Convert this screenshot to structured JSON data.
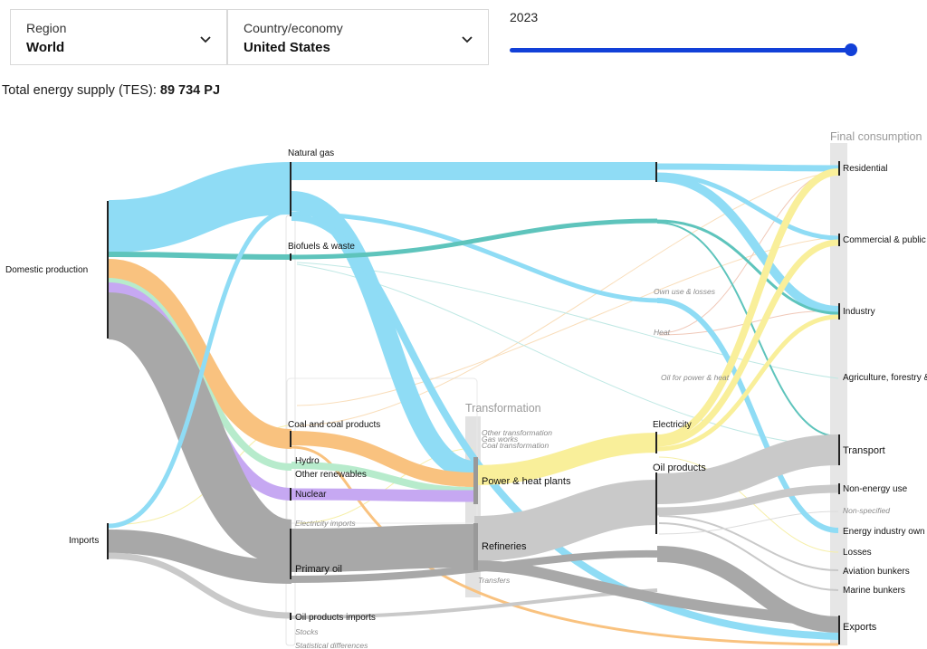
{
  "filters": {
    "region_label": "Region",
    "region_value": "World",
    "country_label": "Country/economy",
    "country_value": "United States",
    "year_label": "2023",
    "year_position_fraction": 1.0
  },
  "summary": {
    "tes_label": "Total energy supply (TES):",
    "tes_value": "89 734 PJ"
  },
  "icons": [
    "chevron-down-icon",
    "chevron-down-icon"
  ],
  "colors": {
    "accent": "#1240d8",
    "natural_gas": "#8fdcf5",
    "biofuels": "#5ec4bc",
    "coal": "#f9c27f",
    "nuclear": "#c6a8f2",
    "renewables": "#b7ebcc",
    "oil": "#a8a8a8",
    "electricity": "#f9ef9a",
    "oil_products": "#c9c9c9",
    "stage_bar": "#e6e6e6"
  },
  "stage_headers": {
    "transformation": "Transformation",
    "final_consumption": "Final consumption"
  },
  "nodes": {
    "domestic_production": "Domestic production",
    "imports": "Imports",
    "natural_gas": "Natural gas",
    "biofuels_waste": "Biofuels & waste",
    "coal": "Coal and coal products",
    "hydro": "Hydro",
    "other_renewables": "Other renewables",
    "nuclear": "Nuclear",
    "electricity_imports": "Electricity imports",
    "primary_oil": "Primary oil",
    "oil_products_imports": "Oil products imports",
    "stocks": "Stocks",
    "statistical_differences": "Statistical differences",
    "other_transformation": "Other transformation",
    "gas_works": "Gas works",
    "coal_transformation": "Coal transformation",
    "power_heat_plants": "Power & heat plants",
    "refineries": "Refineries",
    "transfers": "Transfers",
    "own_use_losses": "Own use & losses",
    "heat": "Heat",
    "oil_for_power_heat": "Oil for power & heat",
    "electricity": "Electricity",
    "oil_products": "Oil products",
    "residential": "Residential",
    "commercial_public": "Commercial & public",
    "industry": "Industry",
    "agriculture": "Agriculture, forestry &",
    "transport": "Transport",
    "non_energy_use": "Non-energy use",
    "non_specified": "Non-specified",
    "energy_industry_own": "Energy industry own",
    "losses": "Losses",
    "aviation_bunkers": "Aviation bunkers",
    "marine_bunkers": "Marine bunkers",
    "exports": "Exports"
  }
}
